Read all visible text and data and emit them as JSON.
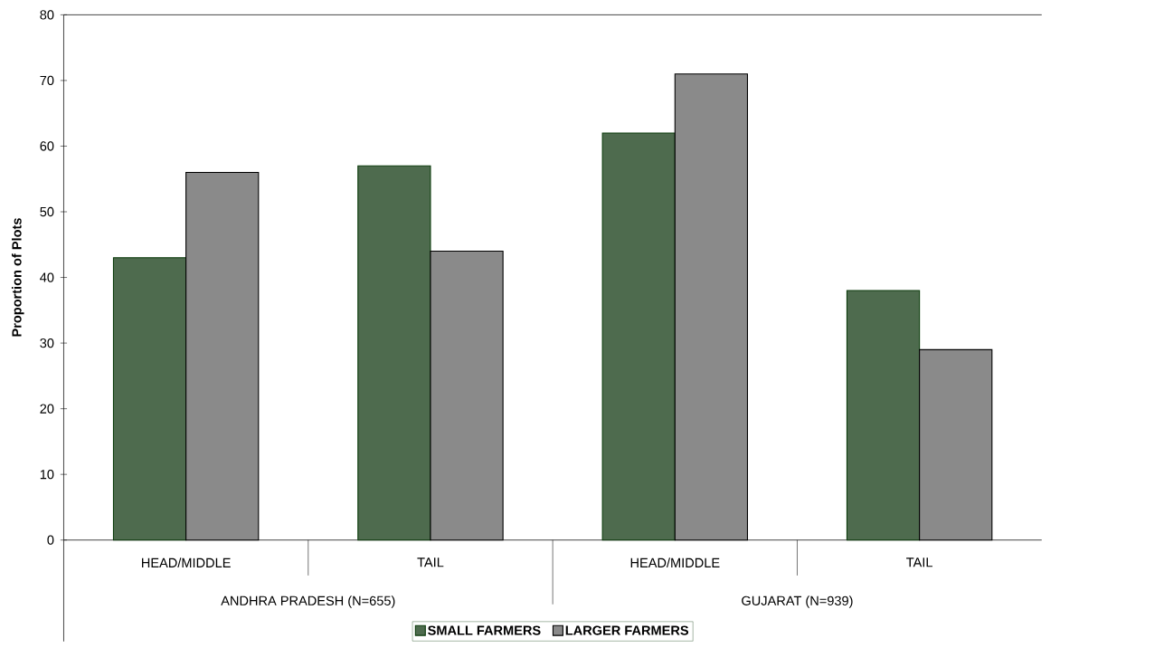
{
  "chart_data": {
    "type": "bar",
    "ylabel": "Proportion of Plots",
    "categories": [
      "HEAD/MIDDLE",
      "TAIL",
      "HEAD/MIDDLE",
      "TAIL"
    ],
    "series": [
      {
        "name": "SMALL FARMERS",
        "color": "#4e6b4e",
        "values": [
          43,
          57,
          62,
          38
        ]
      },
      {
        "name": "LARGER FARMERS",
        "color": "#8a8a8a",
        "values": [
          56,
          44,
          71,
          29
        ]
      }
    ],
    "ylim": [
      0,
      80
    ],
    "yticks": [
      0,
      10,
      20,
      30,
      40,
      50,
      60,
      70,
      80
    ],
    "legend": "bottom",
    "annotations": [
      "ANDHRA PRADESH (N=655)",
      "GUJARAT (N=939)"
    ]
  }
}
